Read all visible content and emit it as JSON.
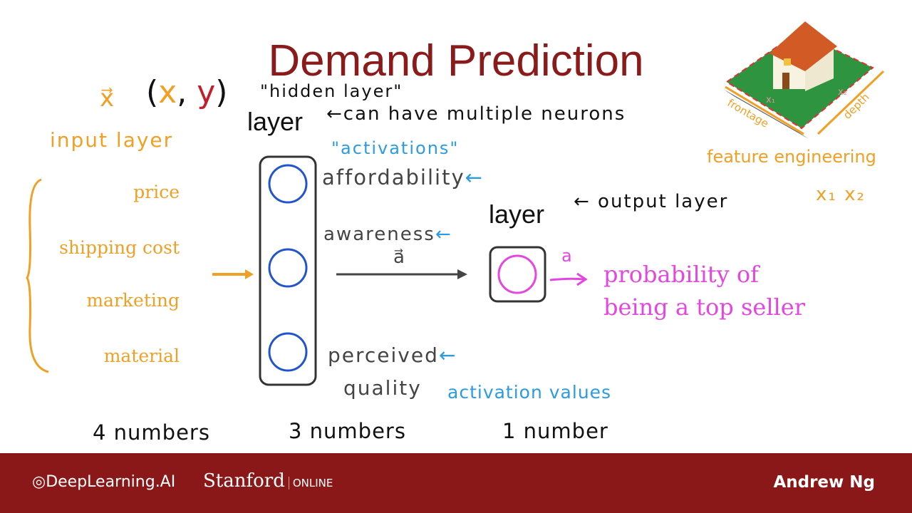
{
  "title": "Demand Prediction",
  "annotations": {
    "x_vector": "x⃗",
    "xy_pair": "(x, y)",
    "x_in_pair": "x",
    "y_in_pair": "y",
    "hidden_layer_quote": "\"hidden layer\"",
    "layer_hidden": "layer",
    "multiple_neurons": "←can have multiple neurons",
    "input_layer": "input layer",
    "activations_quote": "\"activations\"",
    "affordability": "affordability",
    "awareness": "awareness",
    "perceived_quality_1": "perceived",
    "perceived_quality_2": "quality",
    "back_arrow": "←",
    "a_vector": "a⃗",
    "a_scalar": "a",
    "activation_values": "activation values",
    "layer_output": "layer",
    "output_layer": "← output layer",
    "probability_line1": "probability of",
    "probability_line2": "being a top seller",
    "four_numbers": "4 numbers",
    "three_numbers": "3 numbers",
    "one_number": "1 number",
    "feature_engineering": "feature engineering",
    "x1x2": "x₁ x₂"
  },
  "input_features": [
    "price",
    "shipping cost",
    "marketing",
    "material"
  ],
  "house_image": {
    "frontage": "frontage",
    "depth": "depth",
    "x1": "x₁",
    "x2": "x₂"
  },
  "footer": {
    "deeplearning": "DeepLearning.AI",
    "stanford": "Stanford",
    "online": "ONLINE",
    "instructor": "Andrew Ng"
  },
  "colors": {
    "title": "#8b1a1a",
    "orange": "#f0a024",
    "blue": "#2b9be2",
    "magenta": "#e446e0",
    "neuron": "#2255cc",
    "footer": "#8b1818"
  }
}
